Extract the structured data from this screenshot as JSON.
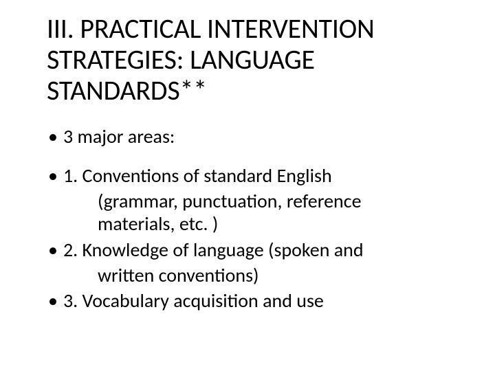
{
  "slide": {
    "title": "III. PRACTICAL INTERVENTION STRATEGIES: LANGUAGE STANDARDS**",
    "intro": "3 major areas:",
    "items": [
      {
        "lead": "1. Conventions of standard English",
        "cont1": "(grammar, punctuation, reference",
        "cont2": "materials, etc. )"
      },
      {
        "lead": "2. Knowledge of language (spoken and",
        "cont1": "written conventions)"
      },
      {
        "lead": "3. Vocabulary acquisition and use"
      }
    ]
  },
  "style": {
    "background_color": "#ffffff",
    "text_color": "#000000",
    "title_fontsize": 40,
    "body_fontsize": 28,
    "font_family": "Calibri"
  }
}
